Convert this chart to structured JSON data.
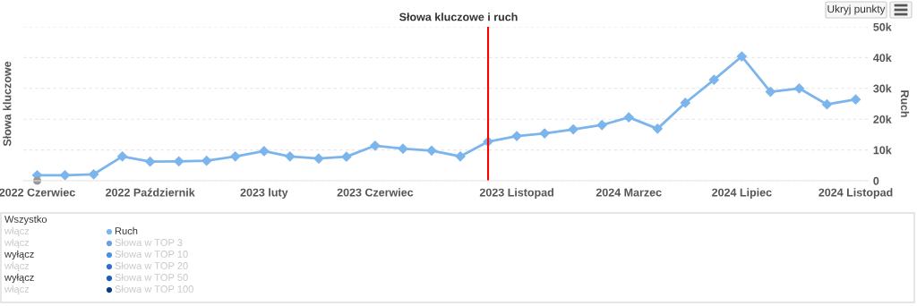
{
  "chart_data": {
    "type": "line",
    "title": "Słowa kluczowe i ruch",
    "ylabel": "Słowa kluczowe",
    "y2label": "Ruch",
    "x": [
      "2022-06",
      "2022-07",
      "2022-08",
      "2022-09",
      "2022-10",
      "2022-11",
      "2022-12",
      "2023-01",
      "2023-02",
      "2023-03",
      "2023-04",
      "2023-05",
      "2023-06",
      "2023-07",
      "2023-08",
      "2023-09",
      "2023-10",
      "2023-11",
      "2023-12",
      "2024-01",
      "2024-02",
      "2024-03",
      "2024-04",
      "2024-05",
      "2024-06",
      "2024-07",
      "2024-08",
      "2024-09",
      "2024-10",
      "2024-11"
    ],
    "xlim": [
      "2022-05-17",
      "2024-11-15"
    ],
    "xticks": [
      {
        "value": "2022-06",
        "label": "2022 Czerwiec"
      },
      {
        "value": "2022-10",
        "label": "2022 Październik"
      },
      {
        "value": "2023-02",
        "label": "2023 luty"
      },
      {
        "value": "2023-06",
        "label": "2023 Czerwiec"
      },
      {
        "value": "2023-11",
        "label": "2023 Listopad"
      },
      {
        "value": "2024-03",
        "label": "2024 Marzec"
      },
      {
        "value": "2024-07",
        "label": "2024 Lipiec"
      },
      {
        "value": "2024-11",
        "label": "2024 Listopad"
      }
    ],
    "y2lim": [
      0,
      50000
    ],
    "y2ticks": [
      0,
      {
        "value": 10000,
        "label": "10k"
      },
      {
        "value": 20000,
        "label": "20k"
      },
      {
        "value": 30000,
        "label": "30k"
      },
      {
        "value": 40000,
        "label": "40k"
      },
      {
        "value": 50000,
        "label": "50k"
      }
    ],
    "grid": "y",
    "marker": "diamond",
    "line_style": "solid",
    "legend": "bottom",
    "series": [
      {
        "name": "Ruch",
        "color": "#7cb5ec",
        "axis": "y2",
        "values": [
          1800,
          1800,
          2100,
          7900,
          6200,
          6300,
          6500,
          7900,
          9600,
          7900,
          7200,
          7800,
          11400,
          10400,
          9800,
          7900,
          12700,
          14500,
          15400,
          16700,
          18100,
          20600,
          16900,
          25300,
          32800,
          40400,
          28900,
          30000,
          24800,
          26400
        ]
      },
      {
        "name": "Słowa w TOP 3",
        "color": "#6a9fe0",
        "axis": "y2",
        "values": [
          null,
          null,
          null,
          null,
          null,
          null,
          null,
          null,
          null,
          null,
          null,
          null,
          null,
          null,
          null,
          null,
          null,
          null,
          null,
          null,
          null,
          null,
          null,
          null,
          null,
          null,
          null,
          null,
          null,
          null
        ]
      },
      {
        "name": "Słowa w TOP 10",
        "color": "#4a8fe6",
        "axis": "y2",
        "values": [
          null,
          null,
          null,
          null,
          null,
          null,
          null,
          null,
          null,
          null,
          null,
          null,
          null,
          null,
          null,
          null,
          null,
          null,
          null,
          null,
          null,
          null,
          null,
          null,
          null,
          null,
          null,
          null,
          null,
          null
        ]
      },
      {
        "name": "Słowa w TOP 20",
        "color": "#2a6fd0",
        "axis": "y2",
        "values": [
          null,
          null,
          null,
          null,
          null,
          null,
          null,
          null,
          null,
          null,
          null,
          null,
          null,
          null,
          null,
          null,
          null,
          null,
          null,
          null,
          null,
          null,
          null,
          null,
          null,
          null,
          null,
          null,
          null,
          null
        ]
      },
      {
        "name": "Słowa w TOP 50",
        "color": "#1c5cbf",
        "axis": "y2",
        "values": [
          null,
          null,
          null,
          null,
          null,
          null,
          null,
          null,
          null,
          null,
          null,
          null,
          null,
          null,
          null,
          null,
          null,
          null,
          null,
          null,
          null,
          null,
          null,
          null,
          null,
          null,
          null,
          null,
          null,
          null
        ]
      },
      {
        "name": "Słowa w TOP 100",
        "color": "#0b3a8a",
        "axis": "y2",
        "values": [
          null,
          null,
          null,
          null,
          null,
          null,
          null,
          null,
          null,
          null,
          null,
          null,
          null,
          null,
          null,
          null,
          null,
          null,
          null,
          null,
          null,
          null,
          null,
          null,
          null,
          null,
          null,
          null,
          null,
          null
        ]
      },
      {
        "type": "scatter",
        "color": "#999999",
        "axis": "y2",
        "marker": "circle",
        "values": [
          0,
          null,
          null,
          null,
          null,
          null,
          null,
          null,
          null,
          null,
          null,
          null,
          null,
          null,
          null,
          null,
          null,
          null,
          null,
          null,
          null,
          null,
          null,
          null,
          null,
          null,
          null,
          null,
          null,
          null
        ]
      }
    ],
    "ref_lines": [
      {
        "axis": "x",
        "value": "2023-10",
        "color": "#ff0000",
        "line_style": "solid"
      }
    ],
    "annotations": [
      "Ukryj punkty",
      "Wszystko",
      "włącz",
      "włącz",
      "wyłącz",
      "włącz",
      "wyłącz",
      "włącz"
    ]
  }
}
